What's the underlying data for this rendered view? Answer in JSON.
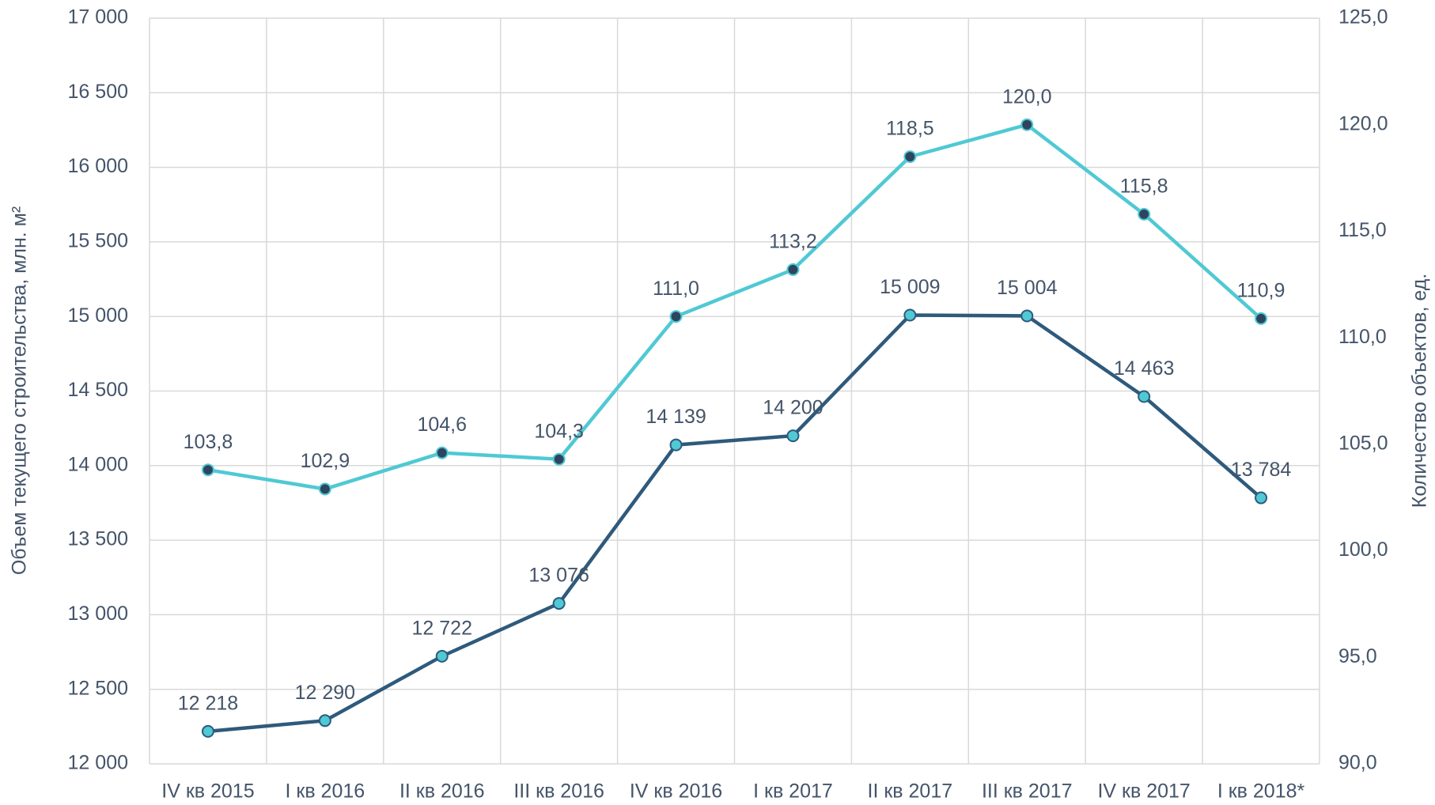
{
  "chart_data": {
    "type": "line",
    "y_label": "Объем текущего строительства, млн. м²",
    "y2_label": "Количество объектов, ед.",
    "categories": [
      "IV кв 2015",
      "I кв 2016",
      "II кв 2016",
      "III кв 2016",
      "IV кв 2016",
      "I кв 2017",
      "II кв 2017",
      "III кв 2017",
      "IV кв 2017",
      "I кв 2018*"
    ],
    "series": [
      {
        "color": "#2e5a7c",
        "marker_color": "#4fc9d4",
        "axis": "y",
        "values": [
          12218,
          12290,
          12722,
          13076,
          14139,
          14200,
          15009,
          15004,
          14463,
          13784
        ],
        "value_labels": [
          "12 218",
          "12 290",
          "12 722",
          "13 076",
          "14 139",
          "14 200",
          "15 009",
          "15 004",
          "14 463",
          "13 784"
        ]
      },
      {
        "color": "#4fc9d4",
        "marker_color": "#2e4560",
        "axis": "y2",
        "values": [
          103.8,
          102.9,
          104.6,
          104.3,
          111.0,
          113.2,
          118.5,
          120.0,
          115.8,
          110.9
        ],
        "value_labels": [
          "103,8",
          "102,9",
          "104,6",
          "104,3",
          "111,0",
          "113,2",
          "118,5",
          "120,0",
          "115,8",
          "110,9"
        ]
      }
    ],
    "ylim": [
      12000,
      17000
    ],
    "yticks": [
      {
        "value": 12000,
        "label": "12 000"
      },
      {
        "value": 12500,
        "label": "12 500"
      },
      {
        "value": 13000,
        "label": "13 000"
      },
      {
        "value": 13500,
        "label": "13 500"
      },
      {
        "value": 14000,
        "label": "14 000"
      },
      {
        "value": 14500,
        "label": "14 500"
      },
      {
        "value": 15000,
        "label": "15 000"
      },
      {
        "value": 15500,
        "label": "15 500"
      },
      {
        "value": 16000,
        "label": "16 000"
      },
      {
        "value": 16500,
        "label": "16 500"
      },
      {
        "value": 17000,
        "label": "17 000"
      }
    ],
    "y2lim": [
      90,
      125
    ],
    "y2ticks": [
      {
        "value": 90,
        "label": "90,0"
      },
      {
        "value": 95,
        "label": "95,0"
      },
      {
        "value": 100,
        "label": "100,0"
      },
      {
        "value": 105,
        "label": "105,0"
      },
      {
        "value": 110,
        "label": "110,0"
      },
      {
        "value": 115,
        "label": "115,0"
      },
      {
        "value": 120,
        "label": "120,0"
      },
      {
        "value": 125,
        "label": "125,0"
      }
    ],
    "grid": true
  }
}
